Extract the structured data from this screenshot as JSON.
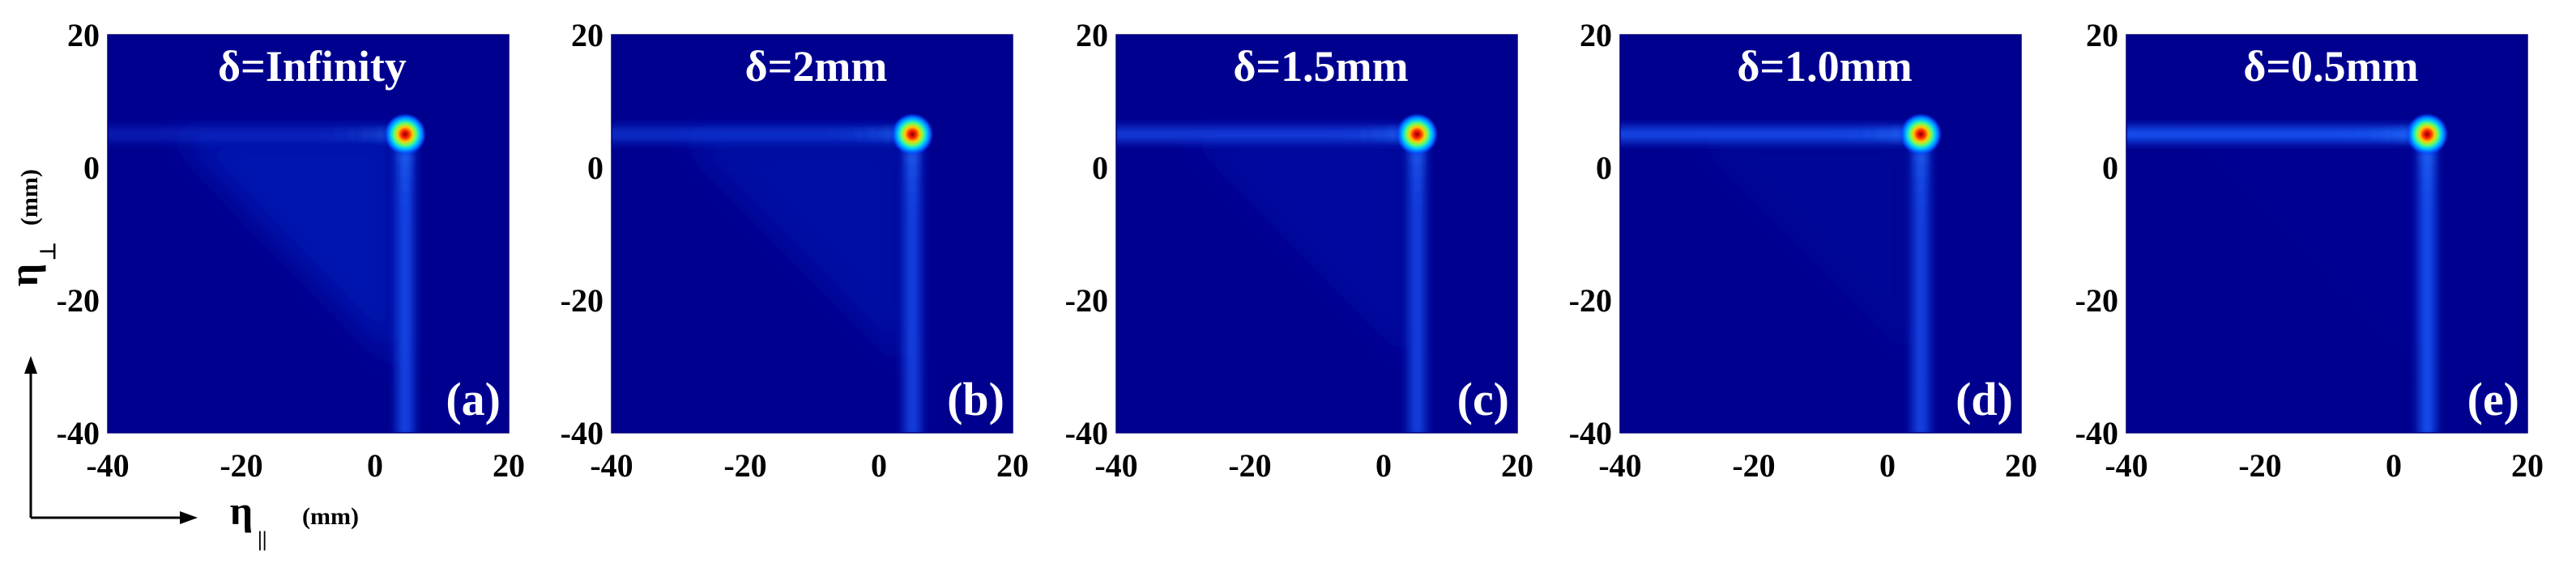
{
  "chart_data": {
    "type": "heatmap",
    "colormap": "jet",
    "axes": {
      "xlim": [
        -40,
        20
      ],
      "ylim": [
        -40,
        20
      ],
      "xticks": [
        -40,
        -20,
        0,
        20
      ],
      "yticks": [
        -40,
        -20,
        0,
        20
      ],
      "xlabel_main": "η",
      "xlabel_sub": "||",
      "xlabel_unit": "(mm)",
      "ylabel_main": "η",
      "ylabel_sub": "⊥",
      "ylabel_unit": "(mm)"
    },
    "panels": [
      {
        "title": "δ=Infinity",
        "label": "(a)",
        "peak": [
          4.5,
          5.0
        ],
        "h_streak": 0.3,
        "v_streak": 0.75,
        "triangle": 0.45
      },
      {
        "title": "δ=2mm",
        "label": "(b)",
        "peak": [
          5.0,
          5.0
        ],
        "h_streak": 0.5,
        "v_streak": 0.7,
        "triangle": 0.3
      },
      {
        "title": "δ=1.5mm",
        "label": "(c)",
        "peak": [
          5.0,
          5.0
        ],
        "h_streak": 0.65,
        "v_streak": 0.7,
        "triangle": 0.22
      },
      {
        "title": "δ=1.0mm",
        "label": "(d)",
        "peak": [
          5.0,
          5.0
        ],
        "h_streak": 0.8,
        "v_streak": 0.75,
        "triangle": 0.1
      },
      {
        "title": "δ=0.5mm",
        "label": "(e)",
        "peak": [
          5.0,
          5.0
        ],
        "h_streak": 0.9,
        "v_streak": 0.85,
        "triangle": 0.05
      }
    ]
  }
}
